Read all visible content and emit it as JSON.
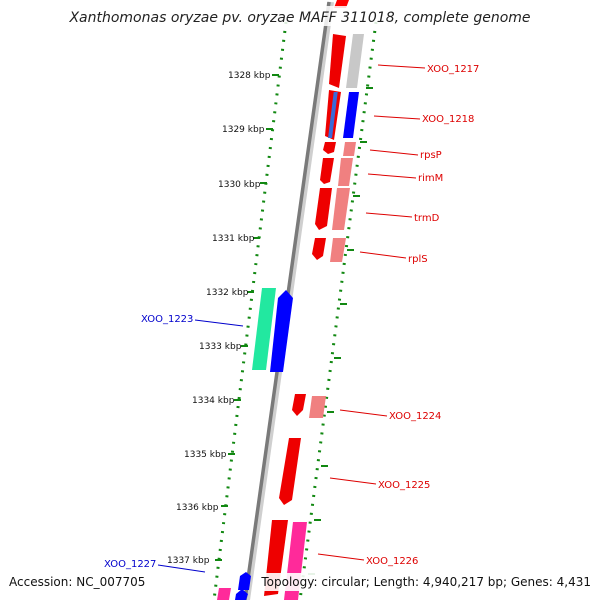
{
  "title": "Xanthomonas oryzae pv. oryzae MAFF 311018, complete genome",
  "footer": {
    "accession": "Accession: NC_007705",
    "topology": "Topology: circular; Length: 4,940,217 bp; Genes: 4,431"
  },
  "kbp_ticks": [
    {
      "label": "1328 kbp"
    },
    {
      "label": "1329 kbp"
    },
    {
      "label": "1330 kbp"
    },
    {
      "label": "1331 kbp"
    },
    {
      "label": "1332 kbp"
    },
    {
      "label": "1333 kbp"
    },
    {
      "label": "1334 kbp"
    },
    {
      "label": "1335 kbp"
    },
    {
      "label": "1336 kbp"
    },
    {
      "label": "1337 kbp"
    }
  ],
  "gene_labels": [
    {
      "name": "XOO_1217",
      "color": "#dd0000"
    },
    {
      "name": "XOO_1218",
      "color": "#dd0000"
    },
    {
      "name": "rpsP",
      "color": "#dd0000"
    },
    {
      "name": "rimM",
      "color": "#dd0000"
    },
    {
      "name": "trmD",
      "color": "#dd0000"
    },
    {
      "name": "rplS",
      "color": "#dd0000"
    },
    {
      "name": "XOO_1223",
      "color": "#0000cc"
    },
    {
      "name": "XOO_1224",
      "color": "#dd0000"
    },
    {
      "name": "XOO_1225",
      "color": "#dd0000"
    },
    {
      "name": "XOO_1226",
      "color": "#dd0000"
    },
    {
      "name": "XOO_1227",
      "color": "#0000cc"
    }
  ],
  "colors": {
    "forward_strand": "#ff0000",
    "forward_pale": "#f08080",
    "reverse_strand": "#0000ff",
    "gray_gene": "#c8c8c8",
    "teal_gene": "#22e8a0",
    "magenta_gene": "#ff2a9a",
    "tick_green": "#118811",
    "backbone": "#808080"
  }
}
